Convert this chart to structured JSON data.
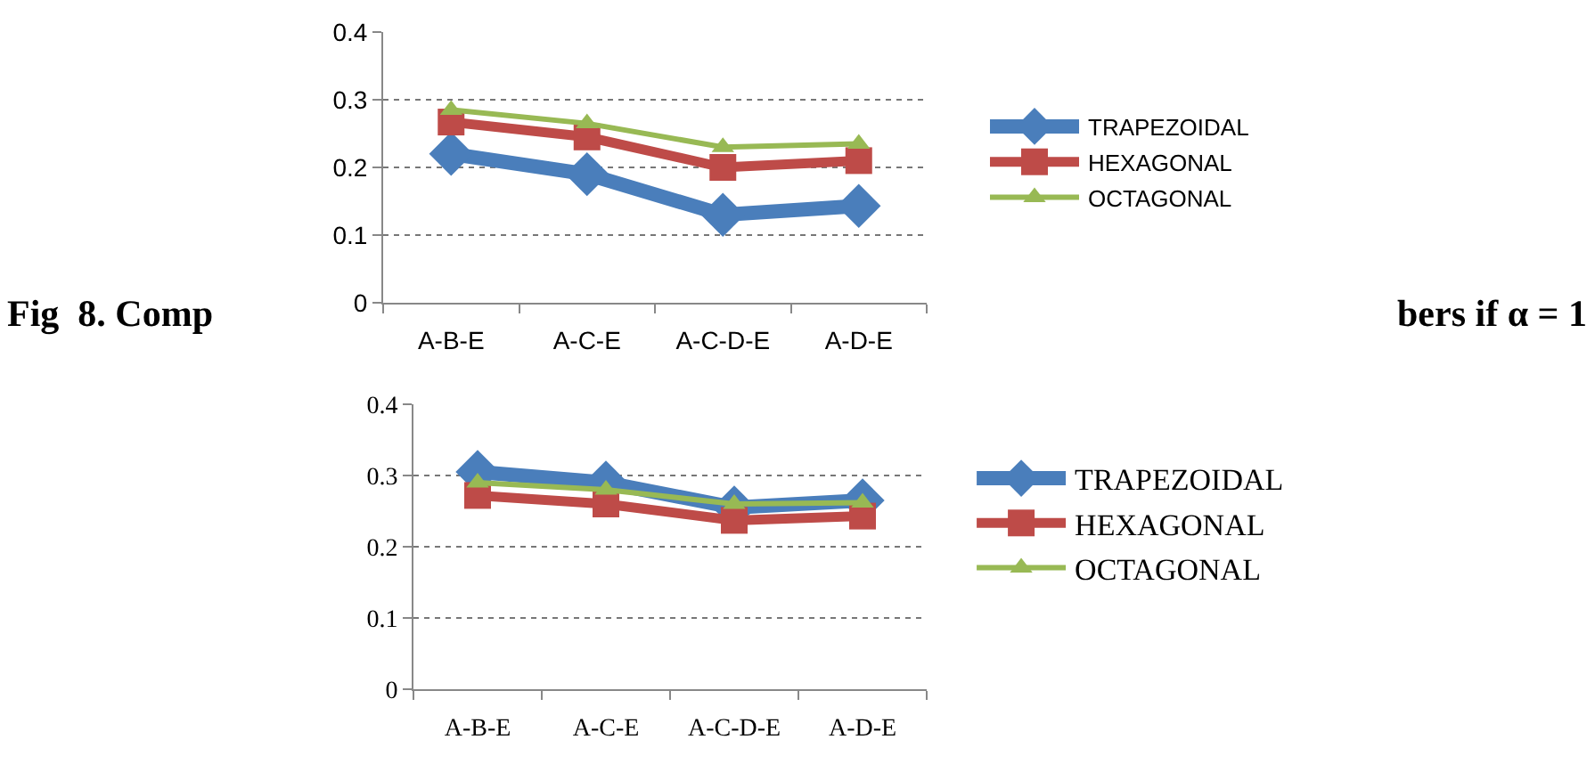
{
  "chart_data": [
    {
      "type": "line",
      "categories": [
        "A-B-E",
        "A-C-E",
        "A-C-D-E",
        "A-D-E"
      ],
      "ylim": [
        0,
        0.4
      ],
      "yticks": [
        0,
        0.1,
        0.2,
        0.3,
        0.4
      ],
      "grid": "y",
      "legend": "right",
      "line_style": "solid",
      "annotations": [
        "Fig  8. Comp",
        "bers if α = 1"
      ],
      "series": [
        {
          "name": "TRAPEZOIDAL",
          "color": "#4a7ebb",
          "marker": "diamond",
          "values": [
            0.22,
            0.19,
            0.13,
            0.143
          ]
        },
        {
          "name": "HEXAGONAL",
          "color": "#be4b48",
          "marker": "square",
          "values": [
            0.267,
            0.245,
            0.2,
            0.21
          ]
        },
        {
          "name": "OCTAGONAL",
          "color": "#98b954",
          "marker": "triangle",
          "values": [
            0.285,
            0.265,
            0.23,
            0.235
          ]
        }
      ]
    },
    {
      "type": "line",
      "categories": [
        "A-B-E",
        "A-C-E",
        "A-C-D-E",
        "A-D-E"
      ],
      "ylim": [
        0,
        0.4
      ],
      "yticks": [
        0,
        0.1,
        0.2,
        0.3,
        0.4
      ],
      "grid": "y",
      "legend": "right",
      "line_style": "solid",
      "series": [
        {
          "name": "TRAPEZOIDAL",
          "color": "#4a7ebb",
          "marker": "diamond",
          "values": [
            0.305,
            0.29,
            0.255,
            0.265
          ]
        },
        {
          "name": "HEXAGONAL",
          "color": "#be4b48",
          "marker": "square",
          "values": [
            0.272,
            0.26,
            0.237,
            0.243
          ]
        },
        {
          "name": "OCTAGONAL",
          "color": "#98b954",
          "marker": "triangle",
          "values": [
            0.29,
            0.28,
            0.26,
            0.262
          ]
        }
      ]
    }
  ]
}
